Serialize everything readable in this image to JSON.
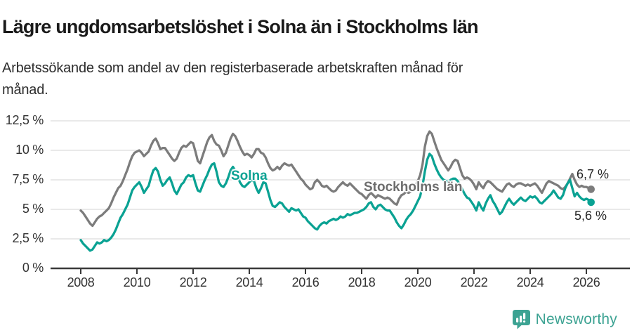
{
  "header": {
    "title": "Lägre ungdomsarbetslöshet i Solna än i Stockholms län",
    "subtitle": "Arbetssökande som andel av den registerbaserade arbetskraften månad för månad."
  },
  "footer": {
    "brand": "Newsworthy",
    "logo_icon": "bar-chart-speech-bubble-icon",
    "brand_color": "#3da393"
  },
  "chart_data": {
    "type": "line",
    "title": "Lägre ungdomsarbetslöshet i Solna än i Stockholms län",
    "subtitle": "Arbetssökande som andel av den registerbaserade arbetskraften månad för månad.",
    "unit": "%",
    "frequency": "monthly",
    "start": "2008-01",
    "end": "2026-03",
    "ylim": [
      0,
      12.5
    ],
    "grid": "horizontal",
    "legend_position": "inline-labels",
    "gridline_color": "#dcdcdc",
    "axis_color": "#3a3a3a",
    "y_ticks": [
      {
        "value": 0,
        "label": "0 %"
      },
      {
        "value": 2.5,
        "label": "2,5 %"
      },
      {
        "value": 5,
        "label": "5 %"
      },
      {
        "value": 7.5,
        "label": "7,5 %"
      },
      {
        "value": 10,
        "label": "10 %"
      },
      {
        "value": 12.5,
        "label": "12,5 %"
      }
    ],
    "x_ticks": [
      {
        "year": 2008,
        "label": "2008"
      },
      {
        "year": 2010,
        "label": "2010"
      },
      {
        "year": 2012,
        "label": "2012"
      },
      {
        "year": 2014,
        "label": "2014"
      },
      {
        "year": 2016,
        "label": "2016"
      },
      {
        "year": 2018,
        "label": "2018"
      },
      {
        "year": 2020,
        "label": "2020"
      },
      {
        "year": 2022,
        "label": "2022"
      },
      {
        "year": 2024,
        "label": "2024"
      },
      {
        "year": 2026,
        "label": "2026"
      }
    ],
    "series": [
      {
        "name": "Stockholms län",
        "color": "#7c7c7c",
        "end_value": 6.7,
        "end_label": "6,7 %",
        "values": [
          4.9,
          4.7,
          4.4,
          4.1,
          3.8,
          3.6,
          3.9,
          4.2,
          4.4,
          4.5,
          4.7,
          4.9,
          5.1,
          5.5,
          6.0,
          6.4,
          6.8,
          7.0,
          7.4,
          7.9,
          8.4,
          9.0,
          9.5,
          9.8,
          9.9,
          10.0,
          9.8,
          9.5,
          9.7,
          9.9,
          10.4,
          10.8,
          11.0,
          10.6,
          10.1,
          10.2,
          10.2,
          9.9,
          9.6,
          9.3,
          9.1,
          9.3,
          9.8,
          10.2,
          10.4,
          10.3,
          10.5,
          10.7,
          10.6,
          9.9,
          9.1,
          8.9,
          9.5,
          10.1,
          10.7,
          11.1,
          11.3,
          10.8,
          10.5,
          10.4,
          10.0,
          9.5,
          9.8,
          10.4,
          11.0,
          11.4,
          11.2,
          10.8,
          10.3,
          9.9,
          9.6,
          9.7,
          9.6,
          9.4,
          9.7,
          10.1,
          10.1,
          9.8,
          9.7,
          9.4,
          8.9,
          8.5,
          8.3,
          8.4,
          8.6,
          8.4,
          8.7,
          8.9,
          8.8,
          8.7,
          8.8,
          8.5,
          8.2,
          7.9,
          7.6,
          7.4,
          7.1,
          6.9,
          6.7,
          6.8,
          7.3,
          7.5,
          7.3,
          7.0,
          6.9,
          7.0,
          6.8,
          6.6,
          6.5,
          6.6,
          6.9,
          7.1,
          7.3,
          7.1,
          7.0,
          7.2,
          7.0,
          6.8,
          6.6,
          6.4,
          6.3,
          6.1,
          5.9,
          6.2,
          6.4,
          6.2,
          6.0,
          6.2,
          6.1,
          6.0,
          5.9,
          6.0,
          5.9,
          5.7,
          5.5,
          5.4,
          5.9,
          6.2,
          6.3,
          6.5,
          6.4,
          6.5,
          6.7,
          7.0,
          7.4,
          7.9,
          8.8,
          10.3,
          11.2,
          11.6,
          11.4,
          10.8,
          10.2,
          9.7,
          9.2,
          8.9,
          8.6,
          8.3,
          8.6,
          9.0,
          9.2,
          9.1,
          8.5,
          7.9,
          7.6,
          7.7,
          7.6,
          7.4,
          7.1,
          6.7,
          7.3,
          7.0,
          6.8,
          7.2,
          7.4,
          7.3,
          7.1,
          6.9,
          6.7,
          6.6,
          6.5,
          6.8,
          7.1,
          7.2,
          7.0,
          6.9,
          7.1,
          7.2,
          7.2,
          7.1,
          7.0,
          7.1,
          7.0,
          7.1,
          7.2,
          7.0,
          6.7,
          6.4,
          6.8,
          7.2,
          7.4,
          7.3,
          7.2,
          7.1,
          7.0,
          6.8,
          6.7,
          6.9,
          7.2,
          7.6,
          8.0,
          7.5,
          7.1,
          6.9,
          7.0,
          6.9,
          6.9,
          6.8,
          6.7
        ]
      },
      {
        "name": "Solna",
        "color": "#0aa293",
        "end_value": 5.6,
        "end_label": "5,6 %",
        "values": [
          2.4,
          2.1,
          1.9,
          1.7,
          1.5,
          1.6,
          1.9,
          2.2,
          2.1,
          2.2,
          2.4,
          2.3,
          2.4,
          2.6,
          2.9,
          3.3,
          3.8,
          4.3,
          4.6,
          5.0,
          5.4,
          6.0,
          6.6,
          6.9,
          7.1,
          7.3,
          6.9,
          6.4,
          6.7,
          7.0,
          7.7,
          8.3,
          8.5,
          8.2,
          7.5,
          7.0,
          7.2,
          7.5,
          7.7,
          7.2,
          6.6,
          6.3,
          6.7,
          7.1,
          7.3,
          7.7,
          7.9,
          7.8,
          7.9,
          7.2,
          6.6,
          6.5,
          7.0,
          7.5,
          7.9,
          8.4,
          8.8,
          8.9,
          8.2,
          7.3,
          7.0,
          6.9,
          7.2,
          7.7,
          8.3,
          8.6,
          8.3,
          7.8,
          7.3,
          7.0,
          6.9,
          7.1,
          7.3,
          7.5,
          7.4,
          6.8,
          6.4,
          6.8,
          7.3,
          7.2,
          6.5,
          5.8,
          5.3,
          5.2,
          5.4,
          5.6,
          5.5,
          5.2,
          5.0,
          4.8,
          5.1,
          5.0,
          4.9,
          5.0,
          4.7,
          4.4,
          4.3,
          4.0,
          3.8,
          3.6,
          3.4,
          3.3,
          3.6,
          3.8,
          3.9,
          3.8,
          4.0,
          4.1,
          4.2,
          4.1,
          4.2,
          4.4,
          4.3,
          4.4,
          4.6,
          4.5,
          4.6,
          4.7,
          4.7,
          4.8,
          4.9,
          5.0,
          5.2,
          5.5,
          5.6,
          5.2,
          5.0,
          5.3,
          5.4,
          5.2,
          5.0,
          4.9,
          4.9,
          4.6,
          4.3,
          3.9,
          3.6,
          3.4,
          3.7,
          4.1,
          4.4,
          4.6,
          4.9,
          5.3,
          5.7,
          6.1,
          7.0,
          8.2,
          9.2,
          9.7,
          9.5,
          8.9,
          8.4,
          8.0,
          7.7,
          7.5,
          7.4,
          7.3,
          7.5,
          7.6,
          7.6,
          7.4,
          7.1,
          6.7,
          6.3,
          6.0,
          5.9,
          5.6,
          5.3,
          4.9,
          5.6,
          5.2,
          4.9,
          5.5,
          5.9,
          6.2,
          5.7,
          5.4,
          5.0,
          4.6,
          4.8,
          5.2,
          5.6,
          5.9,
          5.6,
          5.4,
          5.6,
          5.8,
          6.0,
          5.8,
          5.7,
          5.9,
          6.1,
          6.0,
          6.1,
          5.9,
          5.6,
          5.5,
          5.7,
          5.9,
          6.1,
          6.3,
          6.6,
          6.3,
          6.0,
          5.9,
          6.2,
          6.8,
          7.2,
          7.5,
          6.8,
          6.1,
          6.4,
          6.1,
          5.9,
          5.8,
          5.9,
          5.8,
          5.6
        ]
      }
    ]
  }
}
